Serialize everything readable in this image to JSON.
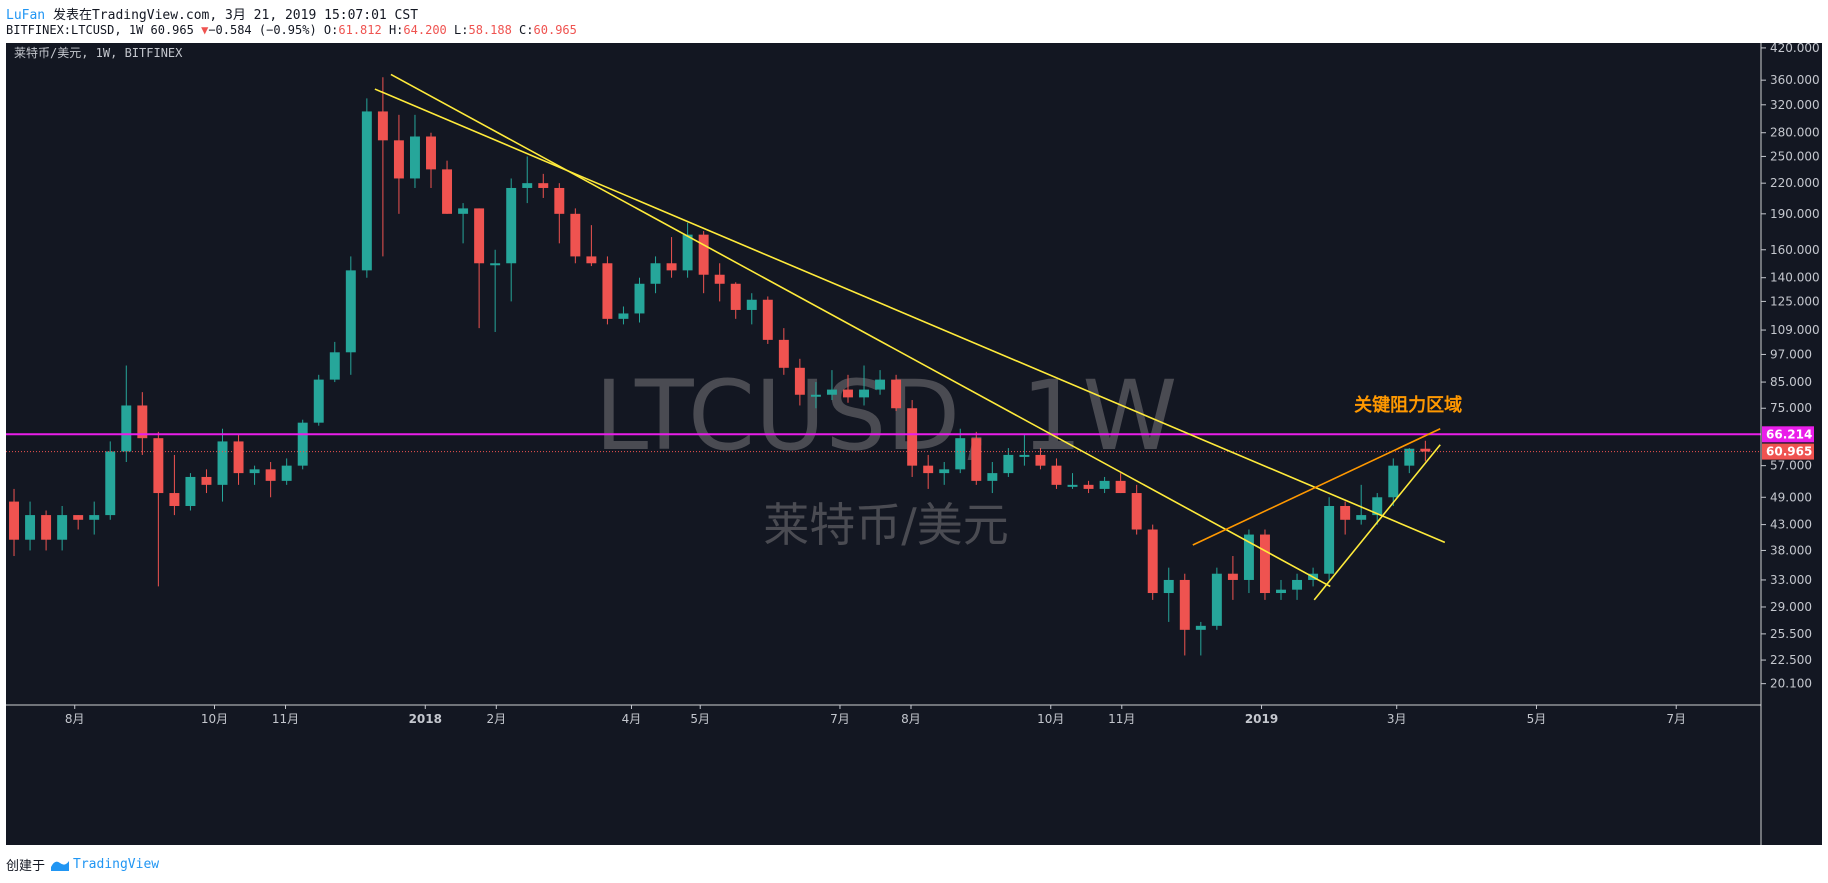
{
  "header": {
    "user": "LuFan",
    "published_text": " 发表在TradingView.com, 3月 21, 2019 15:07:01 CST",
    "symbol_line": "BITFINEX:LTCUSD, 1W 60.965",
    "change_text": "−0.584 (−0.95%)",
    "o_label": " O:",
    "o_value": "61.812",
    "h_label": " H:",
    "h_value": "64.200",
    "l_label": " L:",
    "l_value": "58.188",
    "c_label": " C:",
    "c_value": "60.965"
  },
  "footer": {
    "created_label": "创建于",
    "brand": "TradingView"
  },
  "colors": {
    "background": "#131722",
    "up": "#26a69a",
    "down": "#ef5350",
    "trendline": "#ffeb3b",
    "channel": "#ff9800",
    "resistance": "#e91ee9",
    "watermark": "#4a4b52",
    "axis_text": "#c4c7ce"
  },
  "chart_data": {
    "type": "candlestick",
    "title": "莱特币/美元, 1W, BITFINEX",
    "watermark_symbol": "LTCUSD, 1W",
    "watermark_name": "莱特币/美元",
    "yscale": "log",
    "ylim": [
      18.5,
      430
    ],
    "xlim": [
      "2017-07-02",
      "2019-08-07"
    ],
    "y_ticks": [
      420,
      360,
      320,
      280,
      250,
      220,
      190,
      160,
      140,
      125,
      109,
      97,
      85,
      75,
      57,
      49,
      43,
      38,
      33,
      29,
      25.5,
      22.5,
      20.1
    ],
    "y_tick_labels": [
      "420.000",
      "360.000",
      "320.000",
      "280.000",
      "250.000",
      "220.000",
      "190.000",
      "160.000",
      "140.000",
      "125.000",
      "109.000",
      "97.000",
      "85.000",
      "75.000",
      "57.000",
      "49.000",
      "43.000",
      "38.000",
      "33.000",
      "29.000",
      "25.500",
      "22.500",
      "20.100"
    ],
    "x_ticks": [
      {
        "date": "2017-08-01",
        "label": "8月",
        "bold": false
      },
      {
        "date": "2017-10-01",
        "label": "10月",
        "bold": false
      },
      {
        "date": "2017-11-01",
        "label": "11月",
        "bold": false
      },
      {
        "date": "2018-01-01",
        "label": "2018",
        "bold": true
      },
      {
        "date": "2018-02-01",
        "label": "2月",
        "bold": false
      },
      {
        "date": "2018-04-01",
        "label": "4月",
        "bold": false
      },
      {
        "date": "2018-05-01",
        "label": "5月",
        "bold": false
      },
      {
        "date": "2018-07-01",
        "label": "7月",
        "bold": false
      },
      {
        "date": "2018-08-01",
        "label": "8月",
        "bold": false
      },
      {
        "date": "2018-10-01",
        "label": "10月",
        "bold": false
      },
      {
        "date": "2018-11-01",
        "label": "11月",
        "bold": false
      },
      {
        "date": "2019-01-01",
        "label": "2019",
        "bold": true
      },
      {
        "date": "2019-03-01",
        "label": "3月",
        "bold": false
      },
      {
        "date": "2019-05-01",
        "label": "5月",
        "bold": false
      },
      {
        "date": "2019-07-01",
        "label": "7月",
        "bold": false
      }
    ],
    "candles": [
      {
        "t": "2017-07-02",
        "o": 48,
        "h": 51,
        "l": 37,
        "c": 40
      },
      {
        "t": "2017-07-09",
        "o": 40,
        "h": 48,
        "l": 38,
        "c": 45
      },
      {
        "t": "2017-07-16",
        "o": 45,
        "h": 46,
        "l": 38,
        "c": 40
      },
      {
        "t": "2017-07-23",
        "o": 40,
        "h": 47,
        "l": 38,
        "c": 45
      },
      {
        "t": "2017-07-30",
        "o": 45,
        "h": 45,
        "l": 42,
        "c": 44
      },
      {
        "t": "2017-08-06",
        "o": 44,
        "h": 48,
        "l": 41,
        "c": 45
      },
      {
        "t": "2017-08-13",
        "o": 45,
        "h": 64,
        "l": 44,
        "c": 61
      },
      {
        "t": "2017-08-20",
        "o": 61,
        "h": 92,
        "l": 58,
        "c": 76
      },
      {
        "t": "2017-08-27",
        "o": 76,
        "h": 81,
        "l": 60,
        "c": 65
      },
      {
        "t": "2017-09-03",
        "o": 65,
        "h": 67,
        "l": 32,
        "c": 50
      },
      {
        "t": "2017-09-10",
        "o": 50,
        "h": 60,
        "l": 45,
        "c": 47
      },
      {
        "t": "2017-09-17",
        "o": 47,
        "h": 55,
        "l": 46,
        "c": 54
      },
      {
        "t": "2017-09-24",
        "o": 54,
        "h": 56,
        "l": 50,
        "c": 52
      },
      {
        "t": "2017-10-01",
        "o": 52,
        "h": 68,
        "l": 48,
        "c": 64
      },
      {
        "t": "2017-10-08",
        "o": 64,
        "h": 66,
        "l": 52,
        "c": 55
      },
      {
        "t": "2017-10-15",
        "o": 55,
        "h": 57,
        "l": 52,
        "c": 56
      },
      {
        "t": "2017-10-22",
        "o": 56,
        "h": 58,
        "l": 49,
        "c": 53
      },
      {
        "t": "2017-10-29",
        "o": 53,
        "h": 59,
        "l": 52,
        "c": 57
      },
      {
        "t": "2017-11-05",
        "o": 57,
        "h": 71,
        "l": 56,
        "c": 70
      },
      {
        "t": "2017-11-12",
        "o": 70,
        "h": 88,
        "l": 69,
        "c": 86
      },
      {
        "t": "2017-11-19",
        "o": 86,
        "h": 103,
        "l": 85,
        "c": 98
      },
      {
        "t": "2017-11-26",
        "o": 98,
        "h": 155,
        "l": 88,
        "c": 145
      },
      {
        "t": "2017-12-03",
        "o": 145,
        "h": 330,
        "l": 140,
        "c": 310
      },
      {
        "t": "2017-12-10",
        "o": 310,
        "h": 365,
        "l": 155,
        "c": 270
      },
      {
        "t": "2017-12-17",
        "o": 270,
        "h": 305,
        "l": 190,
        "c": 225
      },
      {
        "t": "2017-12-24",
        "o": 225,
        "h": 305,
        "l": 215,
        "c": 275
      },
      {
        "t": "2017-12-31",
        "o": 275,
        "h": 280,
        "l": 215,
        "c": 235
      },
      {
        "t": "2018-01-07",
        "o": 235,
        "h": 245,
        "l": 190,
        "c": 190
      },
      {
        "t": "2018-01-14",
        "o": 190,
        "h": 200,
        "l": 165,
        "c": 195
      },
      {
        "t": "2018-01-21",
        "o": 195,
        "h": 195,
        "l": 110,
        "c": 150
      },
      {
        "t": "2018-01-28",
        "o": 150,
        "h": 160,
        "l": 108,
        "c": 150
      },
      {
        "t": "2018-02-04",
        "o": 150,
        "h": 225,
        "l": 125,
        "c": 215
      },
      {
        "t": "2018-02-11",
        "o": 215,
        "h": 250,
        "l": 200,
        "c": 220
      },
      {
        "t": "2018-02-18",
        "o": 220,
        "h": 230,
        "l": 205,
        "c": 215
      },
      {
        "t": "2018-02-25",
        "o": 215,
        "h": 220,
        "l": 165,
        "c": 190
      },
      {
        "t": "2018-03-04",
        "o": 190,
        "h": 195,
        "l": 150,
        "c": 155
      },
      {
        "t": "2018-03-11",
        "o": 155,
        "h": 180,
        "l": 148,
        "c": 150
      },
      {
        "t": "2018-03-18",
        "o": 150,
        "h": 155,
        "l": 112,
        "c": 115
      },
      {
        "t": "2018-03-25",
        "o": 115,
        "h": 122,
        "l": 112,
        "c": 118
      },
      {
        "t": "2018-04-01",
        "o": 118,
        "h": 140,
        "l": 113,
        "c": 136
      },
      {
        "t": "2018-04-08",
        "o": 136,
        "h": 155,
        "l": 130,
        "c": 150
      },
      {
        "t": "2018-04-15",
        "o": 150,
        "h": 170,
        "l": 140,
        "c": 145
      },
      {
        "t": "2018-04-22",
        "o": 145,
        "h": 182,
        "l": 140,
        "c": 172
      },
      {
        "t": "2018-04-29",
        "o": 172,
        "h": 175,
        "l": 130,
        "c": 142
      },
      {
        "t": "2018-05-06",
        "o": 142,
        "h": 150,
        "l": 125,
        "c": 136
      },
      {
        "t": "2018-05-13",
        "o": 136,
        "h": 137,
        "l": 115,
        "c": 120
      },
      {
        "t": "2018-05-20",
        "o": 120,
        "h": 130,
        "l": 112,
        "c": 126
      },
      {
        "t": "2018-05-27",
        "o": 126,
        "h": 128,
        "l": 102,
        "c": 104
      },
      {
        "t": "2018-06-03",
        "o": 104,
        "h": 110,
        "l": 88,
        "c": 91
      },
      {
        "t": "2018-06-10",
        "o": 91,
        "h": 95,
        "l": 76,
        "c": 80
      },
      {
        "t": "2018-06-17",
        "o": 80,
        "h": 85,
        "l": 75,
        "c": 80
      },
      {
        "t": "2018-06-24",
        "o": 80,
        "h": 90,
        "l": 78,
        "c": 82
      },
      {
        "t": "2018-07-01",
        "o": 82,
        "h": 88,
        "l": 77,
        "c": 79
      },
      {
        "t": "2018-07-08",
        "o": 79,
        "h": 92,
        "l": 76,
        "c": 82
      },
      {
        "t": "2018-07-15",
        "o": 82,
        "h": 90,
        "l": 80,
        "c": 86
      },
      {
        "t": "2018-07-22",
        "o": 86,
        "h": 88,
        "l": 74,
        "c": 75
      },
      {
        "t": "2018-07-29",
        "o": 75,
        "h": 78,
        "l": 54,
        "c": 57
      },
      {
        "t": "2018-08-05",
        "o": 57,
        "h": 60,
        "l": 51,
        "c": 55
      },
      {
        "t": "2018-08-12",
        "o": 55,
        "h": 58,
        "l": 52,
        "c": 56
      },
      {
        "t": "2018-08-19",
        "o": 56,
        "h": 68,
        "l": 55,
        "c": 65
      },
      {
        "t": "2018-08-26",
        "o": 65,
        "h": 67,
        "l": 52,
        "c": 53
      },
      {
        "t": "2018-09-02",
        "o": 53,
        "h": 58,
        "l": 50,
        "c": 55
      },
      {
        "t": "2018-09-09",
        "o": 55,
        "h": 62,
        "l": 54,
        "c": 60
      },
      {
        "t": "2018-09-16",
        "o": 60,
        "h": 66,
        "l": 57,
        "c": 60
      },
      {
        "t": "2018-09-23",
        "o": 60,
        "h": 62,
        "l": 56,
        "c": 57
      },
      {
        "t": "2018-09-30",
        "o": 57,
        "h": 59,
        "l": 51,
        "c": 52
      },
      {
        "t": "2018-10-07",
        "o": 52,
        "h": 55,
        "l": 51,
        "c": 52
      },
      {
        "t": "2018-10-14",
        "o": 52,
        "h": 53,
        "l": 50,
        "c": 51
      },
      {
        "t": "2018-10-21",
        "o": 51,
        "h": 54,
        "l": 50,
        "c": 53
      },
      {
        "t": "2018-10-28",
        "o": 53,
        "h": 55,
        "l": 50,
        "c": 50
      },
      {
        "t": "2018-11-04",
        "o": 50,
        "h": 52,
        "l": 41,
        "c": 42
      },
      {
        "t": "2018-11-11",
        "o": 42,
        "h": 43,
        "l": 30,
        "c": 31
      },
      {
        "t": "2018-11-18",
        "o": 31,
        "h": 35,
        "l": 27,
        "c": 33
      },
      {
        "t": "2018-11-25",
        "o": 33,
        "h": 34,
        "l": 23,
        "c": 26
      },
      {
        "t": "2018-12-02",
        "o": 26,
        "h": 27,
        "l": 23,
        "c": 26.5
      },
      {
        "t": "2018-12-09",
        "o": 26.5,
        "h": 35,
        "l": 26,
        "c": 34
      },
      {
        "t": "2018-12-16",
        "o": 34,
        "h": 37,
        "l": 30,
        "c": 33
      },
      {
        "t": "2018-12-23",
        "o": 33,
        "h": 42,
        "l": 31,
        "c": 41
      },
      {
        "t": "2018-12-30",
        "o": 41,
        "h": 42,
        "l": 30,
        "c": 31
      },
      {
        "t": "2019-01-06",
        "o": 31,
        "h": 33,
        "l": 30,
        "c": 31.5
      },
      {
        "t": "2019-01-13",
        "o": 31.5,
        "h": 34,
        "l": 30,
        "c": 33
      },
      {
        "t": "2019-01-20",
        "o": 33,
        "h": 35,
        "l": 32,
        "c": 34
      },
      {
        "t": "2019-01-27",
        "o": 34,
        "h": 49,
        "l": 33,
        "c": 47
      },
      {
        "t": "2019-02-03",
        "o": 47,
        "h": 48,
        "l": 41,
        "c": 44
      },
      {
        "t": "2019-02-10",
        "o": 44,
        "h": 52,
        "l": 43,
        "c": 45
      },
      {
        "t": "2019-02-17",
        "o": 45,
        "h": 50,
        "l": 43,
        "c": 49
      },
      {
        "t": "2019-02-24",
        "o": 49,
        "h": 59,
        "l": 47,
        "c": 57
      },
      {
        "t": "2019-03-03",
        "o": 57,
        "h": 62,
        "l": 55,
        "c": 61.8
      },
      {
        "t": "2019-03-10",
        "o": 61.8,
        "h": 64.2,
        "l": 58.2,
        "c": 60.965
      }
    ],
    "trendlines": [
      {
        "color": "yellow",
        "p1": {
          "t": "2017-12-17",
          "v": 370
        },
        "p2": {
          "t": "2019-01-31",
          "v": 32
        }
      },
      {
        "t": "",
        "color": "yellow",
        "p1": {
          "t": "2017-12-10",
          "v": 345
        },
        "p2": {
          "t": "2019-03-22",
          "v": 39.5
        }
      },
      {
        "color": "yellow",
        "p1": {
          "t": "2019-01-24",
          "v": 30
        },
        "p2": {
          "t": "2019-03-20",
          "v": 63
        }
      },
      {
        "color": "orange",
        "p1": {
          "t": "2018-12-02",
          "v": 39
        },
        "p2": {
          "t": "2019-03-20",
          "v": 68
        }
      }
    ],
    "horizontal_levels": [
      {
        "value": 66.214,
        "label": "66.214",
        "style": "solid",
        "color": "magenta"
      },
      {
        "value": 60.965,
        "label": "60.965",
        "style": "dotted",
        "color": "red"
      }
    ],
    "annotation": {
      "text": "关键阻力区域",
      "t": "2019-03-06",
      "v": 74
    }
  }
}
